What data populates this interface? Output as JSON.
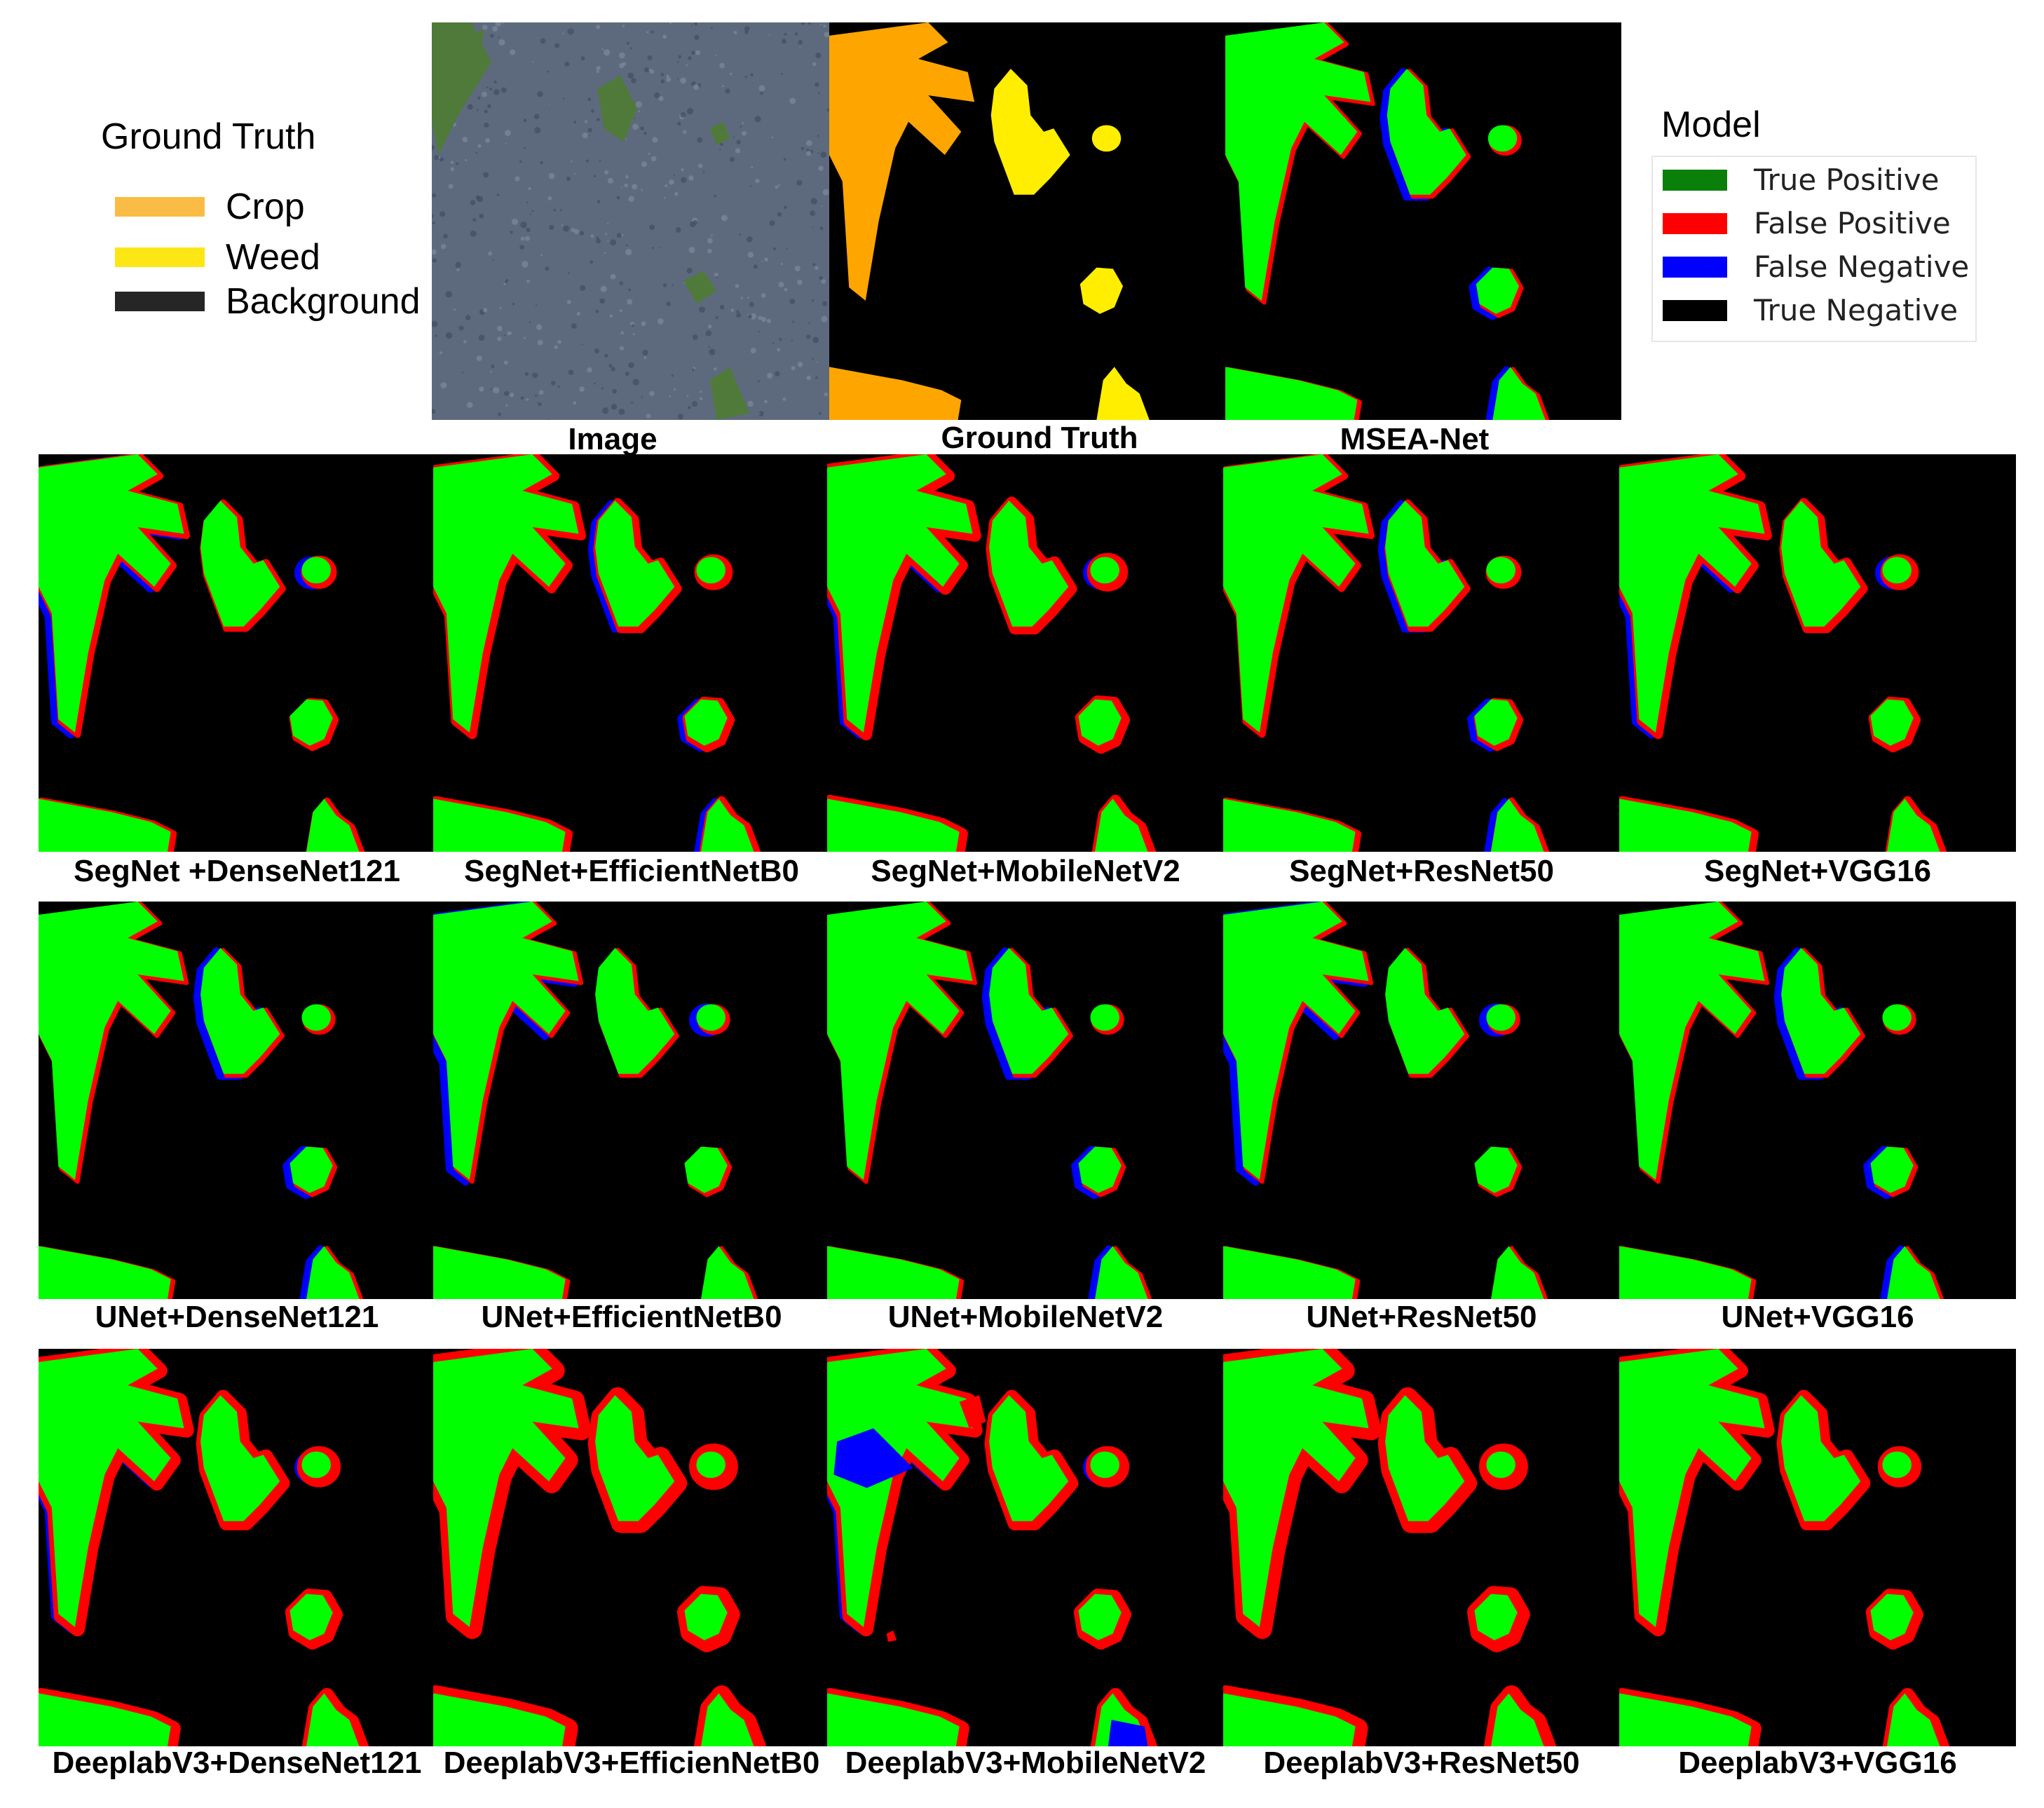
{
  "gt_legend": {
    "title": "Ground Truth",
    "items": [
      {
        "label": "Crop",
        "color": "#fbbc45"
      },
      {
        "label": "Weed",
        "color": "#fde616"
      },
      {
        "label": "Background",
        "color": "#262626"
      }
    ]
  },
  "model_legend": {
    "title": "Model",
    "items": [
      {
        "label": "True Positive",
        "color": "#0a7f0a"
      },
      {
        "label": "False Positive",
        "color": "#ff0000"
      },
      {
        "label": "False Negative",
        "color": "#0000ff"
      },
      {
        "label": "True Negative",
        "color": "#000000"
      }
    ]
  },
  "top_row": {
    "image_caption": "Image",
    "ground_truth_caption": "Ground Truth",
    "msea_caption": "MSEA-Net"
  },
  "rows": [
    [
      "SegNet +DenseNet121",
      "SegNet+EfficientNetB0",
      "SegNet+MobileNetV2",
      "SegNet+ResNet50",
      "SegNet+VGG16"
    ],
    [
      "UNet+DenseNet121",
      "UNet+EfficientNetB0",
      "UNet+MobileNetV2",
      "UNet+ResNet50",
      "UNet+VGG16"
    ],
    [
      "DeeplabV3+DenseNet121",
      "DeeplabV3+EfficienNetB0",
      "DeeplabV3+MobileNetV2",
      "DeeplabV3+ResNet50",
      "DeeplabV3+VGG16"
    ]
  ],
  "colors": {
    "crop": "#ffa500",
    "weed": "#ffee00",
    "tp": "#00ff00",
    "fp": "#ff0000",
    "fn": "#0000ff",
    "soil": "#5d6a7e"
  }
}
